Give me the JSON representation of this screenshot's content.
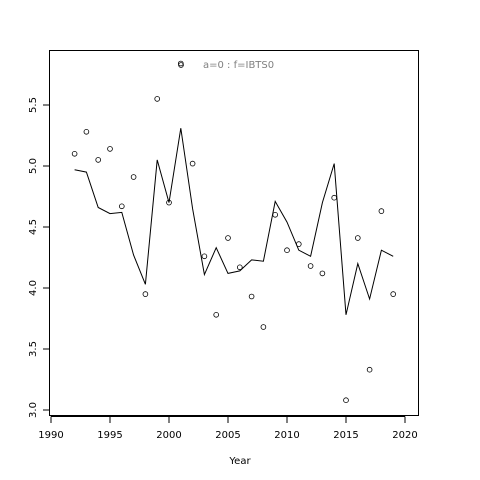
{
  "chart_data": {
    "type": "scatter",
    "title": "",
    "xlabel": "Year",
    "ylabel": "",
    "xlim": [
      1990,
      2021
    ],
    "ylim": [
      2.95,
      5.9
    ],
    "xticks": [
      "1990",
      "1995",
      "2000",
      "2005",
      "2010",
      "2015",
      "2020"
    ],
    "yticks": [
      "3.0",
      "3.5",
      "4.0",
      "4.5",
      "5.0",
      "5.5"
    ],
    "grid": false,
    "legend": {
      "position": "top-center",
      "label": "a=0  :  f=IBTS0"
    },
    "series": [
      {
        "type": "scatter",
        "x": [
          1992,
          1993,
          1994,
          1995,
          1996,
          1997,
          1998,
          1999,
          2000,
          2001,
          2002,
          2003,
          2004,
          2005,
          2006,
          2007,
          2008,
          2009,
          2010,
          2011,
          2012,
          2013,
          2014,
          2015,
          2016,
          2017,
          2018,
          2019
        ],
        "y": [
          5.1,
          5.28,
          5.05,
          5.14,
          4.67,
          4.91,
          3.95,
          5.55,
          4.7,
          5.84,
          5.02,
          4.26,
          3.78,
          4.41,
          4.17,
          3.93,
          3.68,
          4.6,
          4.31,
          4.36,
          4.18,
          4.12,
          4.74,
          3.08,
          4.41,
          3.33,
          4.63,
          3.95
        ]
      },
      {
        "type": "line",
        "x": [
          1992,
          1993,
          1994,
          1995,
          1996,
          1997,
          1998,
          1999,
          2000,
          2001,
          2002,
          2003,
          2004,
          2005,
          2006,
          2007,
          2008,
          2009,
          2010,
          2011,
          2012,
          2013,
          2014,
          2015,
          2016,
          2017,
          2018,
          2019
        ],
        "y": [
          4.97,
          4.95,
          4.66,
          4.61,
          4.62,
          4.27,
          4.03,
          5.05,
          4.7,
          5.31,
          4.65,
          4.11,
          4.33,
          4.12,
          4.14,
          4.23,
          4.22,
          4.71,
          4.54,
          4.31,
          4.26,
          4.7,
          5.02,
          3.78,
          4.2,
          3.91,
          4.31,
          4.26
        ]
      }
    ]
  }
}
